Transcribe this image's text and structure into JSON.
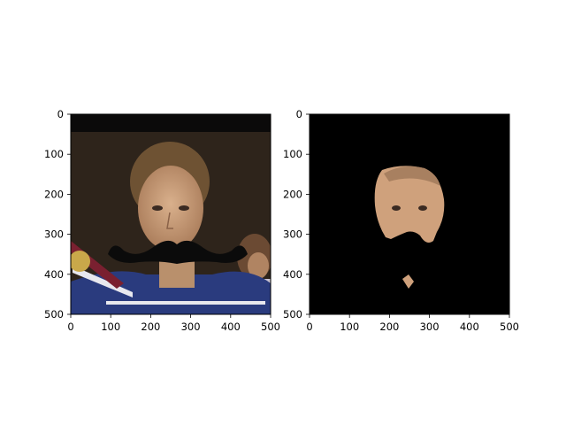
{
  "panels": [
    {
      "name": "left",
      "image": {
        "description_icon": "person-photo",
        "top_band_color": "#0b0a0a",
        "background_color": "#2e241b",
        "skin_color": "#c9a07c",
        "hair_color": "#6e5233",
        "jacket_color": "#2a3b7e",
        "jacket_stripe_color": "#e8e8ee",
        "medal_color": "#c9a84a",
        "ribbon_color": "#7a2030",
        "mustache_color": "#0b0b0b"
      },
      "x_axis": {
        "range": [
          0,
          500
        ],
        "ticks": [
          "0",
          "100",
          "200",
          "300",
          "400",
          "500"
        ]
      },
      "y_axis": {
        "range": [
          0,
          500
        ],
        "ticks": [
          "0",
          "100",
          "200",
          "300",
          "400",
          "500"
        ]
      }
    },
    {
      "name": "right",
      "image": {
        "description_icon": "masked-face",
        "background_color": "#000000",
        "skin_color": "#cfa17c",
        "hair_color": "#a88060"
      },
      "x_axis": {
        "range": [
          0,
          500
        ],
        "ticks": [
          "0",
          "100",
          "200",
          "300",
          "400",
          "500"
        ]
      },
      "y_axis": {
        "range": [
          0,
          500
        ],
        "ticks": [
          "0",
          "100",
          "200",
          "300",
          "400",
          "500"
        ]
      }
    }
  ]
}
